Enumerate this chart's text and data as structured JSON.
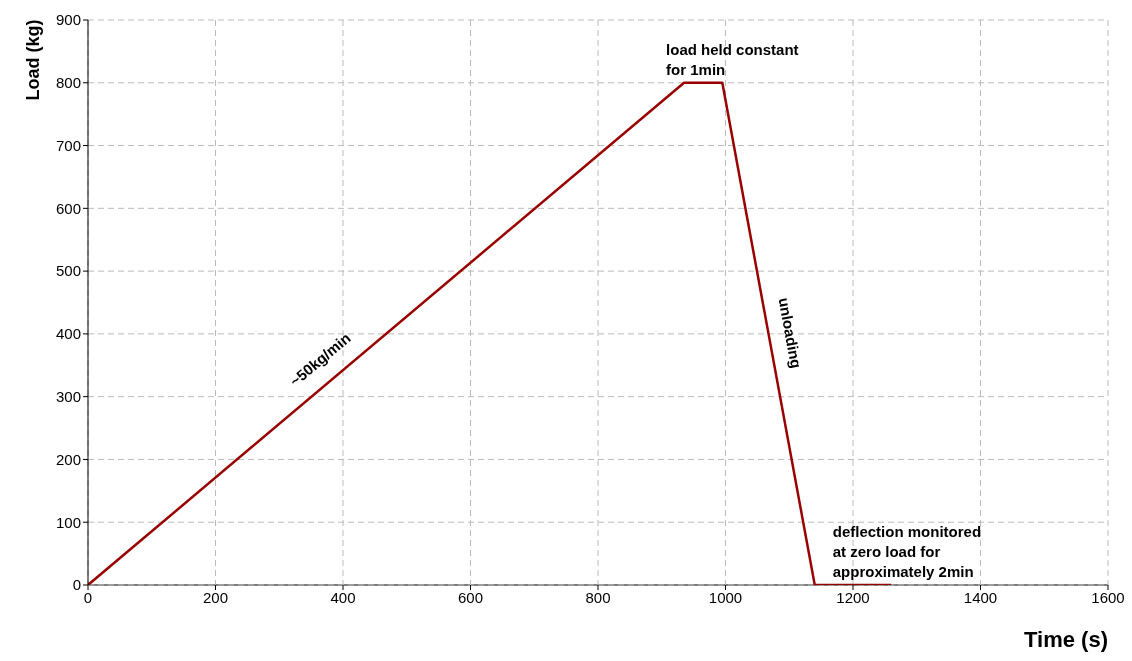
{
  "chart_data": {
    "type": "line",
    "xlabel": "Time (s)",
    "ylabel": "Load (kg)",
    "x": [
      0,
      935,
      995,
      1140,
      1260
    ],
    "series": [
      {
        "color": "#990000",
        "values": [
          0,
          800,
          800,
          0,
          0
        ]
      }
    ],
    "xlim": [
      0,
      1600
    ],
    "xticks": [
      0,
      200,
      400,
      600,
      800,
      1000,
      1200,
      1400,
      1600
    ],
    "ylim": [
      0,
      900
    ],
    "yticks": [
      0,
      100,
      200,
      300,
      400,
      500,
      600,
      700,
      800,
      900
    ],
    "grid": true,
    "marker": "none",
    "line_style": "solid",
    "annotations": [
      {
        "text": "load held constant\nfor 1min",
        "x": 965,
        "y": 800
      },
      {
        "text": "~50kg/min",
        "x": 385,
        "y": 340
      },
      {
        "text": "unloading",
        "x": 1068,
        "y": 400
      },
      {
        "text": "deflection monitored\nat zero load for\napproximately 2min",
        "x": 1200,
        "y": 0
      }
    ]
  }
}
